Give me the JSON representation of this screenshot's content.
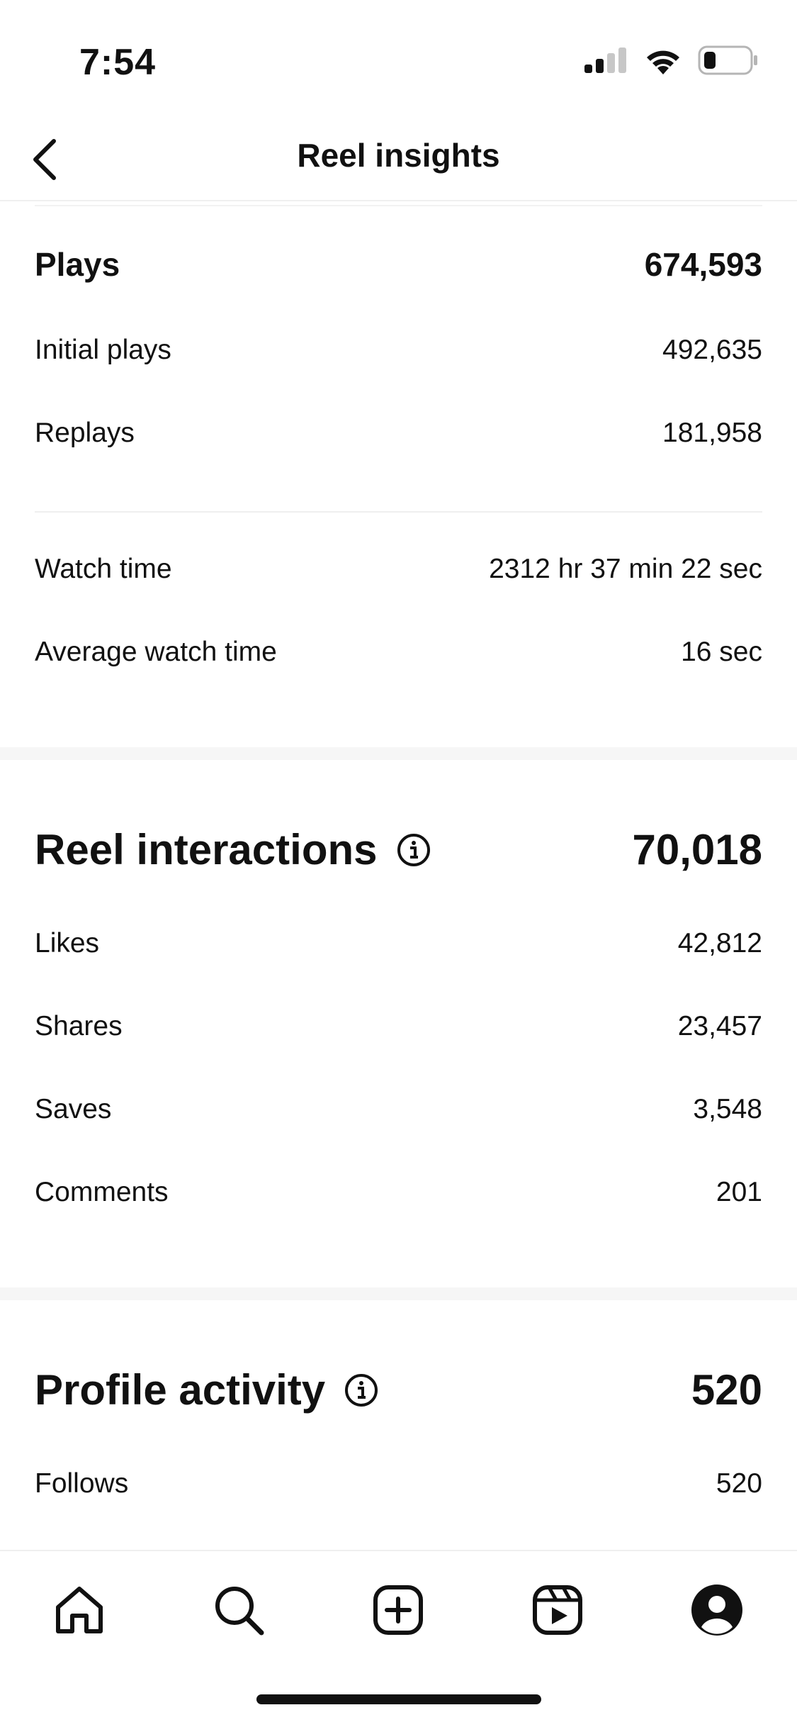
{
  "status_bar": {
    "time": "7:54"
  },
  "header": {
    "title": "Reel insights"
  },
  "plays": {
    "label": "Plays",
    "total": "674,593",
    "rows": [
      {
        "label": "Initial plays",
        "value": "492,635"
      },
      {
        "label": "Replays",
        "value": "181,958"
      }
    ],
    "watch_rows": [
      {
        "label": "Watch time",
        "value": "2312 hr 37 min 22 sec"
      },
      {
        "label": "Average watch time",
        "value": "16 sec"
      }
    ]
  },
  "reel_interactions": {
    "label": "Reel interactions",
    "total": "70,018",
    "rows": [
      {
        "label": "Likes",
        "value": "42,812"
      },
      {
        "label": "Shares",
        "value": "23,457"
      },
      {
        "label": "Saves",
        "value": "3,548"
      },
      {
        "label": "Comments",
        "value": "201"
      }
    ]
  },
  "profile_activity": {
    "label": "Profile activity",
    "total": "520",
    "rows": [
      {
        "label": "Follows",
        "value": "520"
      }
    ]
  },
  "tab_bar": {
    "icons": [
      "home-icon",
      "search-icon",
      "create-icon",
      "reels-icon",
      "profile-icon"
    ]
  }
}
